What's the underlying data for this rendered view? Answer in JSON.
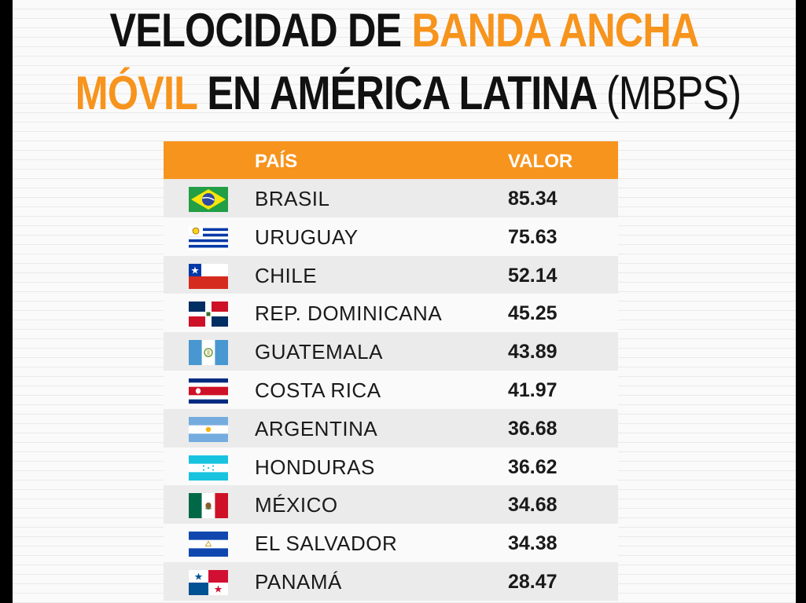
{
  "title": {
    "line1_dark": "VELOCIDAD DE ",
    "line1_orange": "BANDA ANCHA",
    "line2_orange": "MÓVIL",
    "line2_dark": " EN AMÉRICA LATINA ",
    "line2_light": "(MBPS)"
  },
  "colors": {
    "accent": "#f7941d",
    "text": "#111111"
  },
  "table": {
    "headers": {
      "country": "PAÍS",
      "value": "VALOR"
    },
    "rows": [
      {
        "country": "BRASIL",
        "value": "85.34",
        "flag": "brazil-flag-icon"
      },
      {
        "country": "URUGUAY",
        "value": "75.63",
        "flag": "uruguay-flag-icon"
      },
      {
        "country": "CHILE",
        "value": "52.14",
        "flag": "chile-flag-icon"
      },
      {
        "country": "REP. DOMINICANA",
        "value": "45.25",
        "flag": "dominican-republic-flag-icon"
      },
      {
        "country": "GUATEMALA",
        "value": "43.89",
        "flag": "guatemala-flag-icon"
      },
      {
        "country": "COSTA RICA",
        "value": "41.97",
        "flag": "costa-rica-flag-icon"
      },
      {
        "country": "ARGENTINA",
        "value": "36.68",
        "flag": "argentina-flag-icon"
      },
      {
        "country": "HONDURAS",
        "value": "36.62",
        "flag": "honduras-flag-icon"
      },
      {
        "country": "MÉXICO",
        "value": "34.68",
        "flag": "mexico-flag-icon"
      },
      {
        "country": "EL SALVADOR",
        "value": "34.38",
        "flag": "el-salvador-flag-icon"
      },
      {
        "country": "PANAMÁ",
        "value": "28.47",
        "flag": "panama-flag-icon"
      }
    ]
  }
}
